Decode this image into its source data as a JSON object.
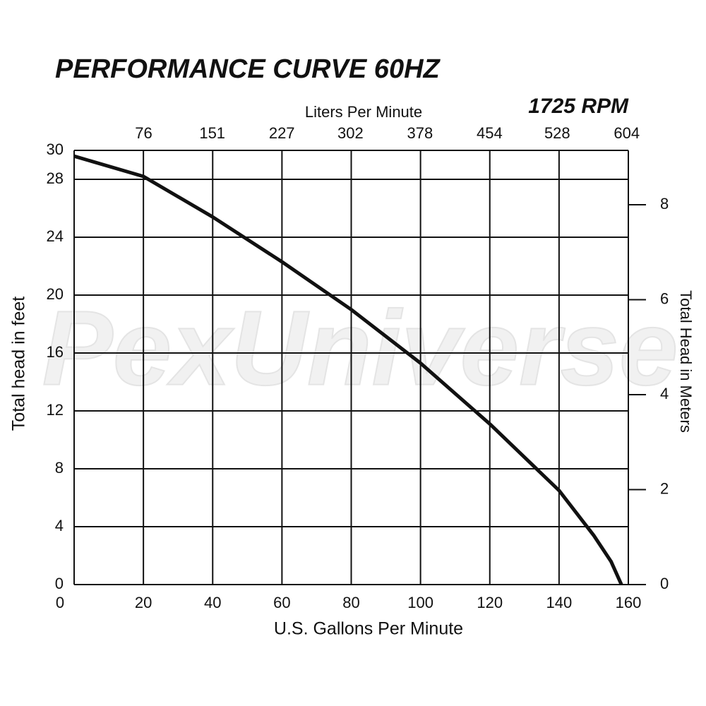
{
  "chart_data": {
    "type": "line",
    "title": "PERFORMANCE CURVE 60HZ",
    "subtitle": "1725 RPM",
    "watermark": "PexUniverse",
    "x_label": "U.S. Gallons Per Minute",
    "x2_label": "Liters Per Minute",
    "y_label": "Total head in feet",
    "y2_label": "Total Head in Meters",
    "xlim": [
      0,
      160
    ],
    "xticks": [
      0,
      20,
      40,
      60,
      80,
      100,
      120,
      140,
      160
    ],
    "x2lim": [
      0,
      605.7
    ],
    "x2ticks": [
      76,
      151,
      227,
      302,
      378,
      454,
      528,
      604
    ],
    "ylim": [
      0,
      30
    ],
    "yticks": [
      0,
      4,
      8,
      12,
      16,
      20,
      24,
      28,
      30
    ],
    "y2lim": [
      0,
      9.144
    ],
    "y2ticks": [
      0,
      2,
      4,
      6,
      8
    ],
    "grid": true,
    "series": [
      {
        "name": "1725 RPM",
        "color": "#111111",
        "x": [
          0,
          20,
          40,
          60,
          80,
          100,
          120,
          140,
          150,
          155,
          158
        ],
        "values": [
          29.6,
          28.2,
          25.4,
          22.3,
          19.0,
          15.3,
          11.1,
          6.5,
          3.4,
          1.6,
          0
        ]
      }
    ]
  }
}
